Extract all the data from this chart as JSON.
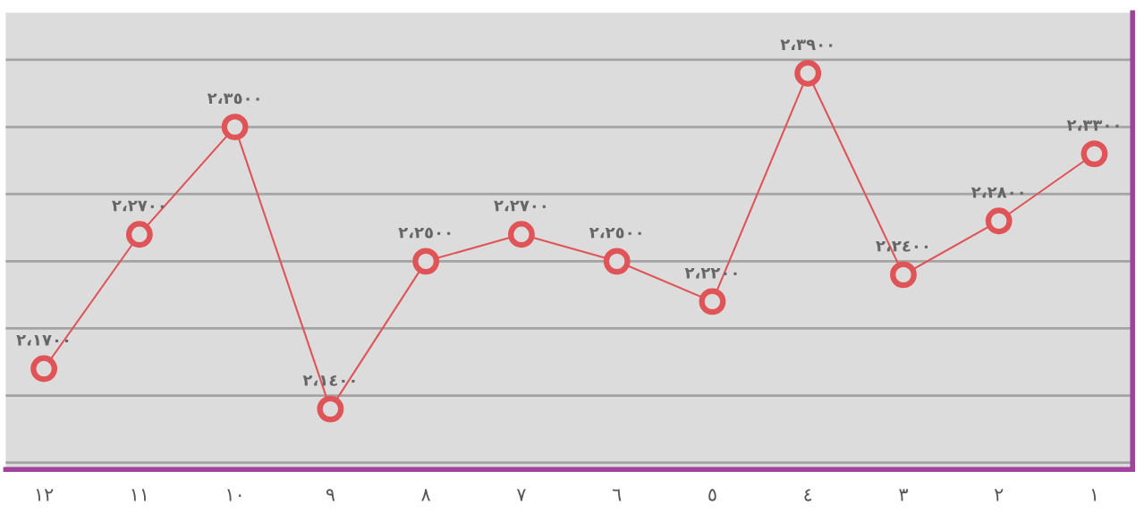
{
  "chart_data": {
    "type": "line",
    "categories": [
      "١٢",
      "١١",
      "١٠",
      "٩",
      "٨",
      "٧",
      "٦",
      "٥",
      "٤",
      "٣",
      "٢",
      "١"
    ],
    "series": [
      {
        "color": "#e05458",
        "values": [
          2.17,
          2.27,
          2.35,
          2.14,
          2.25,
          2.27,
          2.25,
          2.22,
          2.39,
          2.24,
          2.28,
          2.33
        ],
        "value_labels": [
          "٢،١٧٠٠",
          "٢،٢٧٠٠",
          "٢،٣٥٠٠",
          "٢،١٤٠٠",
          "٢،٢٥٠٠",
          "٢،٢٧٠٠",
          "٢،٢٥٠٠",
          "٢،٢٢٠٠",
          "٢،٣٩٠٠",
          "٢،٢٤٠٠",
          "٢،٢٨٠٠",
          "٢،٣٣٠٠"
        ]
      }
    ],
    "grid": "y",
    "tick_labels": "x",
    "marker": "circle",
    "line_style": "solid",
    "legend": false
  }
}
